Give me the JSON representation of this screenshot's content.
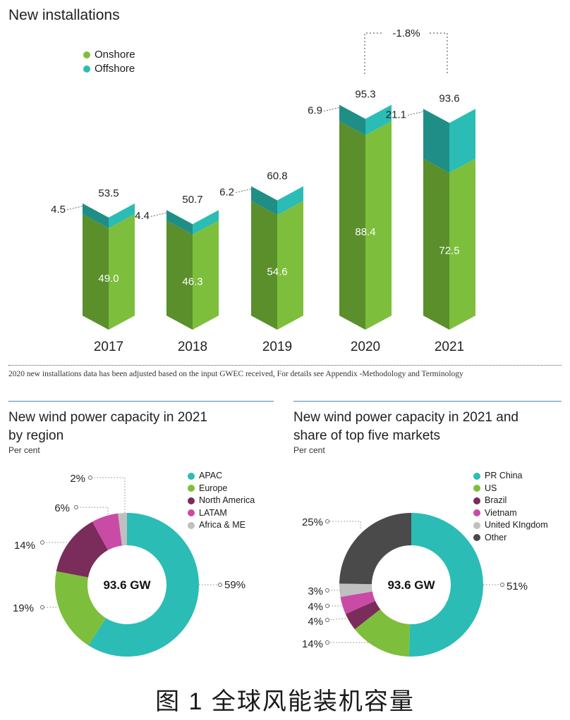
{
  "chart_data": [
    {
      "type": "bar",
      "title": "New installations",
      "categories": [
        "2017",
        "2018",
        "2019",
        "2020",
        "2021"
      ],
      "series": [
        {
          "name": "Onshore",
          "values": [
            49.0,
            46.3,
            54.6,
            88.4,
            72.5
          ]
        },
        {
          "name": "Offshore",
          "values": [
            4.5,
            4.4,
            6.2,
            6.9,
            21.1
          ]
        }
      ],
      "totals": [
        "53.5",
        "50.7",
        "60.8",
        "95.3",
        "93.6"
      ],
      "onshore_labels": [
        "49.0",
        "46.3",
        "54.6",
        "88.4",
        "72.5"
      ],
      "offshore_labels": [
        "4.5",
        "4.4",
        "6.2",
        "6.9",
        "21.1"
      ],
      "annotation": "-1.8%",
      "stacked": true,
      "colors": {
        "onshore_front": "#7dbf3c",
        "onshore_side": "#5a8f2c",
        "offshore_front": "#2bbcb5",
        "offshore_side": "#1f8e87"
      }
    },
    {
      "type": "pie",
      "title_lines": [
        "New wind power capacity in 2021",
        "by region"
      ],
      "subtitle": "Per cent",
      "center_label": "93.6 GW",
      "labels": [
        "APAC",
        "Europe",
        "North America",
        "LATAM",
        "Africa & ME"
      ],
      "values": [
        59,
        19,
        14,
        6,
        2
      ],
      "value_labels": [
        "59%",
        "19%",
        "14%",
        "6%",
        "2%"
      ],
      "colors": [
        "#2bbcb5",
        "#7dbf3c",
        "#7a2c5a",
        "#c94ba6",
        "#c0c0c0"
      ]
    },
    {
      "type": "pie",
      "title_lines": [
        "New wind power capacity in 2021 and",
        "share of top five markets"
      ],
      "subtitle": "Per cent",
      "center_label": "93.6 GW",
      "labels": [
        "PR China",
        "US",
        "Brazil",
        "Vietnam",
        "United KIngdom",
        "Other"
      ],
      "values": [
        51,
        14,
        4,
        4,
        3,
        25
      ],
      "value_labels": [
        "51%",
        "14%",
        "4%",
        "4%",
        "3%",
        "25%"
      ],
      "colors": [
        "#2bbcb5",
        "#7dbf3c",
        "#7a2c5a",
        "#c94ba6",
        "#c0c0c0",
        "#4a4a4a"
      ]
    }
  ],
  "footnote": "2020 new installations data has been adjusted based on the input GWEC received, For details see Appendix -Methodology and Terminology",
  "caption": "图 1  全球风能装机容量"
}
